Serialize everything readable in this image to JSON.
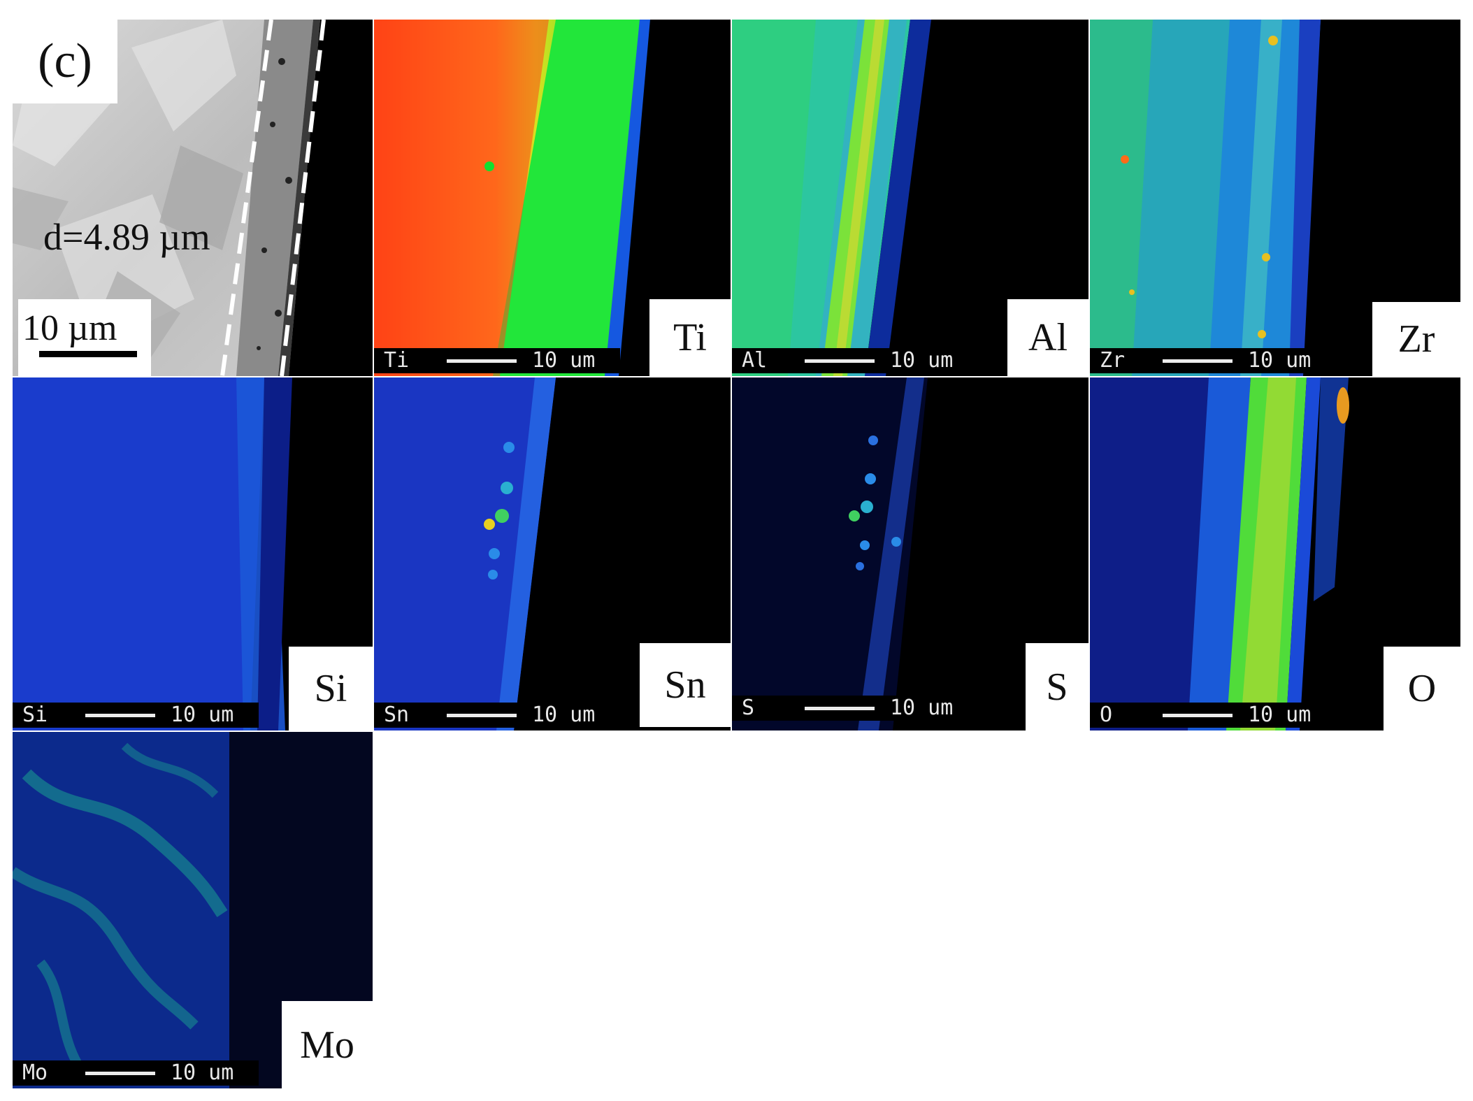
{
  "figure": {
    "panel_letter": "(c)",
    "sem": {
      "thickness_label": "d=4.89 µm",
      "scale_label": "10 µm"
    },
    "maps": [
      {
        "element": "Ti",
        "bar_label": "Ti",
        "bar_length": "10 um"
      },
      {
        "element": "Al",
        "bar_label": "Al",
        "bar_length": "10 um"
      },
      {
        "element": "Zr",
        "bar_label": "Zr",
        "bar_length": "10 um"
      },
      {
        "element": "Si",
        "bar_label": "Si",
        "bar_length": "10 um"
      },
      {
        "element": "Sn",
        "bar_label": "Sn",
        "bar_length": "10 um"
      },
      {
        "element": "S",
        "bar_label": "S",
        "bar_length": "10 um"
      },
      {
        "element": "O",
        "bar_label": "O",
        "bar_length": "10 um"
      },
      {
        "element": "Mo",
        "bar_label": "Mo",
        "bar_length": "10 um"
      }
    ],
    "colors": {
      "map_background": "#000000",
      "low_intensity": "#1431c8",
      "mid_intensity": "#19d84a",
      "high_intensity": "#ff4a1a",
      "sem_gray": "#c6c6c6"
    }
  }
}
